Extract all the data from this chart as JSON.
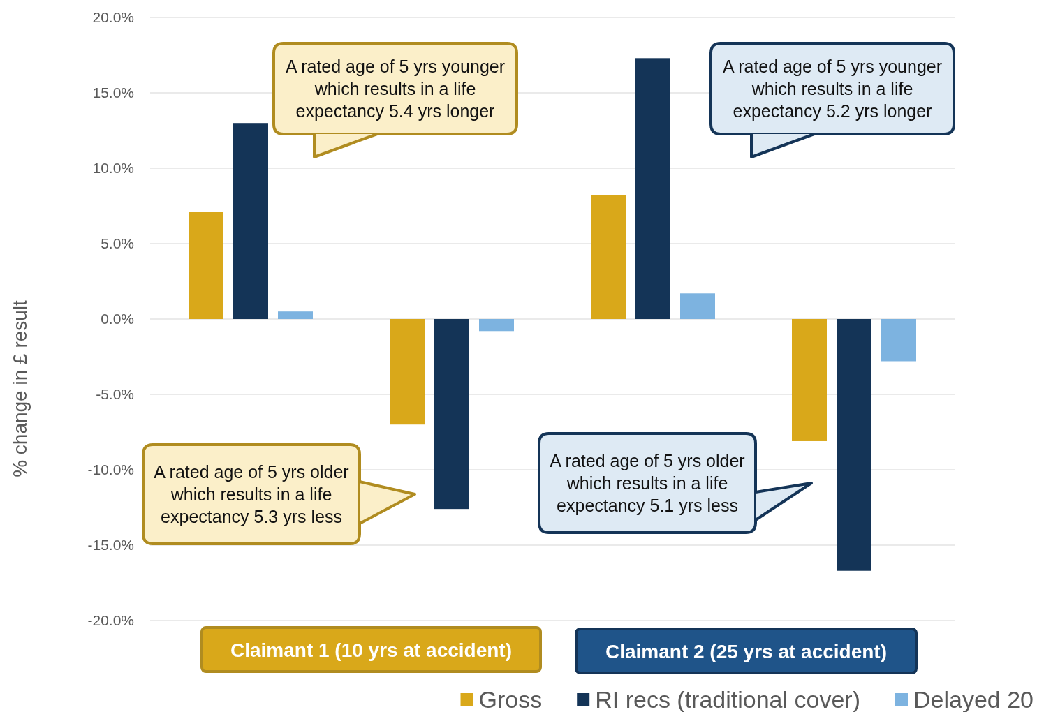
{
  "chart_data": {
    "type": "bar",
    "ylabel": "% change in £ result",
    "categories": [
      null,
      null,
      null,
      null
    ],
    "series": [
      {
        "name": "Gross",
        "color": "#d9a81a",
        "values": [
          7.1,
          -7.0,
          8.2,
          -8.1
        ]
      },
      {
        "name": "RI recs (traditional cover)",
        "color": "#143457",
        "values": [
          13.0,
          -12.6,
          17.3,
          -16.7
        ]
      },
      {
        "name": "Delayed 20",
        "color": "#7db3e0",
        "values": [
          0.5,
          -0.8,
          1.7,
          -2.8
        ]
      }
    ],
    "ylim": [
      -20,
      20
    ],
    "yticks": [
      {
        "value": -20,
        "label": "-20.0%"
      },
      {
        "value": -15,
        "label": "-15.0%"
      },
      {
        "value": -10,
        "label": "-10.0%"
      },
      {
        "value": -5,
        "label": "-5.0%"
      },
      {
        "value": 0,
        "label": "0.0%"
      },
      {
        "value": 5,
        "label": "5.0%"
      },
      {
        "value": 10,
        "label": "10.0%"
      },
      {
        "value": 15,
        "label": "15.0%"
      },
      {
        "value": 20,
        "label": "20.0%"
      }
    ],
    "grid": "y",
    "legend": "bottom right",
    "annotations": [
      "A rated age of 5 yrs younger which results in a life expectancy 5.4 yrs longer",
      "A rated age of 5 yrs younger which results in a life expectancy 5.2 yrs longer",
      "A rated age of 5 yrs older which results in a life expectancy 5.3 yrs less",
      "A rated age of 5 yrs older which results in a life expectancy 5.1 yrs less",
      "Claimant 1 (10 yrs at accident)",
      "Claimant 2 (25 yrs at accident)"
    ]
  }
}
